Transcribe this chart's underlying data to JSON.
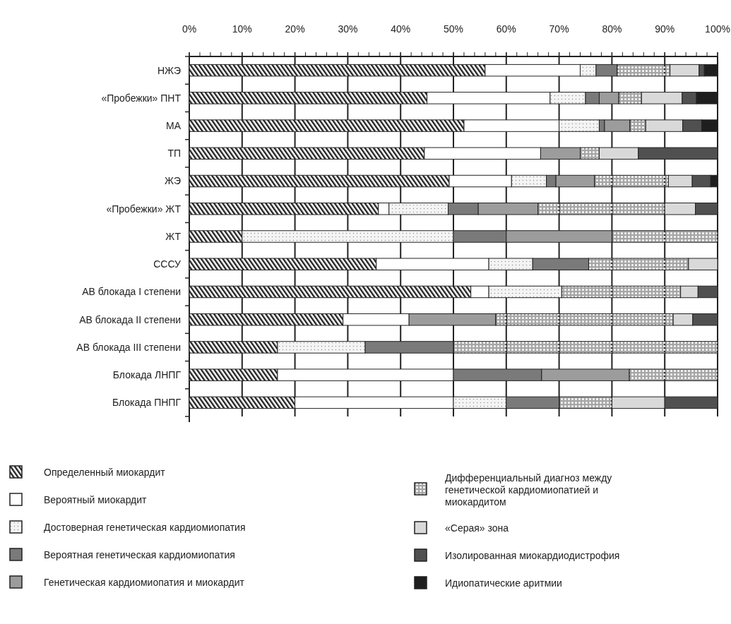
{
  "chart_data": {
    "type": "bar",
    "orientation": "horizontal",
    "stacked": true,
    "categories": [
      "НЖЭ",
      "«Пробежки» ПНТ",
      "МА",
      "ТП",
      "ЖЭ",
      "«Пробежки» ЖТ",
      "ЖТ",
      "СССУ",
      "АВ блокада I степени",
      "АВ блокада II степени",
      "АВ блокада III степени",
      "Блокада ЛНПГ",
      "Блокада ПНПГ"
    ],
    "xlim": [
      0,
      100
    ],
    "xticks": [
      {
        "value": 0,
        "label": "0%"
      },
      {
        "value": 10,
        "label": "10%"
      },
      {
        "value": 20,
        "label": "20%"
      },
      {
        "value": 30,
        "label": "30%"
      },
      {
        "value": 40,
        "label": "40%"
      },
      {
        "value": 50,
        "label": "50%"
      },
      {
        "value": 60,
        "label": "60%"
      },
      {
        "value": 70,
        "label": "70%"
      },
      {
        "value": 80,
        "label": "80%"
      },
      {
        "value": 90,
        "label": "90%"
      },
      {
        "value": 100,
        "label": "100%"
      }
    ],
    "grid": "x",
    "legend": "bottom",
    "series": [
      {
        "name": "Определенный миокардит",
        "color": "#222222",
        "values": [
          56,
          45,
          52,
          44.5,
          49.2,
          35.8,
          10,
          35.4,
          53.3,
          29.1,
          16.7,
          16.7,
          20
        ]
      },
      {
        "name": "Вероятный миокардит",
        "color": "#ffffff",
        "values": [
          18,
          23.3,
          18,
          22,
          11.8,
          2,
          0,
          21.3,
          3.4,
          12.5,
          0,
          33.3,
          30
        ]
      },
      {
        "name": "Достоверная генетическая кардиомиопатия",
        "color": "#222222",
        "values": [
          3,
          6.7,
          7.6,
          0,
          6.6,
          11.2,
          40,
          8.3,
          13.8,
          0,
          16.6,
          0,
          10
        ]
      },
      {
        "name": "Вероятная генетическая кардиомиопатия",
        "color": "#7a7a7a",
        "values": [
          4,
          2.6,
          1,
          0,
          1.8,
          5.7,
          10,
          10.6,
          0,
          0,
          16.7,
          16.7,
          10
        ]
      },
      {
        "name": "Генетическая кардиомиопатия и миокардит",
        "color": "#9c9c9c",
        "values": [
          0,
          3.7,
          4.8,
          7.5,
          7.3,
          11.3,
          20,
          0,
          0,
          16.4,
          0,
          16.6,
          0
        ]
      },
      {
        "name": "Дифференциальный диагноз между генетической кардиомиопатией и миокардитом",
        "color": "#222222",
        "values": [
          10,
          4.3,
          3,
          3.6,
          14,
          24,
          20,
          18.9,
          22.5,
          33.6,
          50,
          16.7,
          10
        ]
      },
      {
        "name": "«Серая» зона",
        "color": "#d9d9d9",
        "values": [
          5.5,
          7.7,
          7,
          7.4,
          4.5,
          5.8,
          0,
          5.5,
          3.3,
          3.7,
          0,
          0,
          10
        ]
      },
      {
        "name": "Изолированная миокардиодистрофия",
        "color": "#505050",
        "values": [
          1,
          2.7,
          3.6,
          15,
          3.5,
          4.2,
          0,
          0,
          3.7,
          4.7,
          0,
          0,
          10
        ]
      },
      {
        "name": "Идиопатические аритмии",
        "color": "#1e1e1e",
        "values": [
          2.5,
          4,
          3,
          0,
          1.3,
          0,
          0,
          0,
          0,
          0,
          0,
          0,
          0
        ]
      }
    ]
  }
}
